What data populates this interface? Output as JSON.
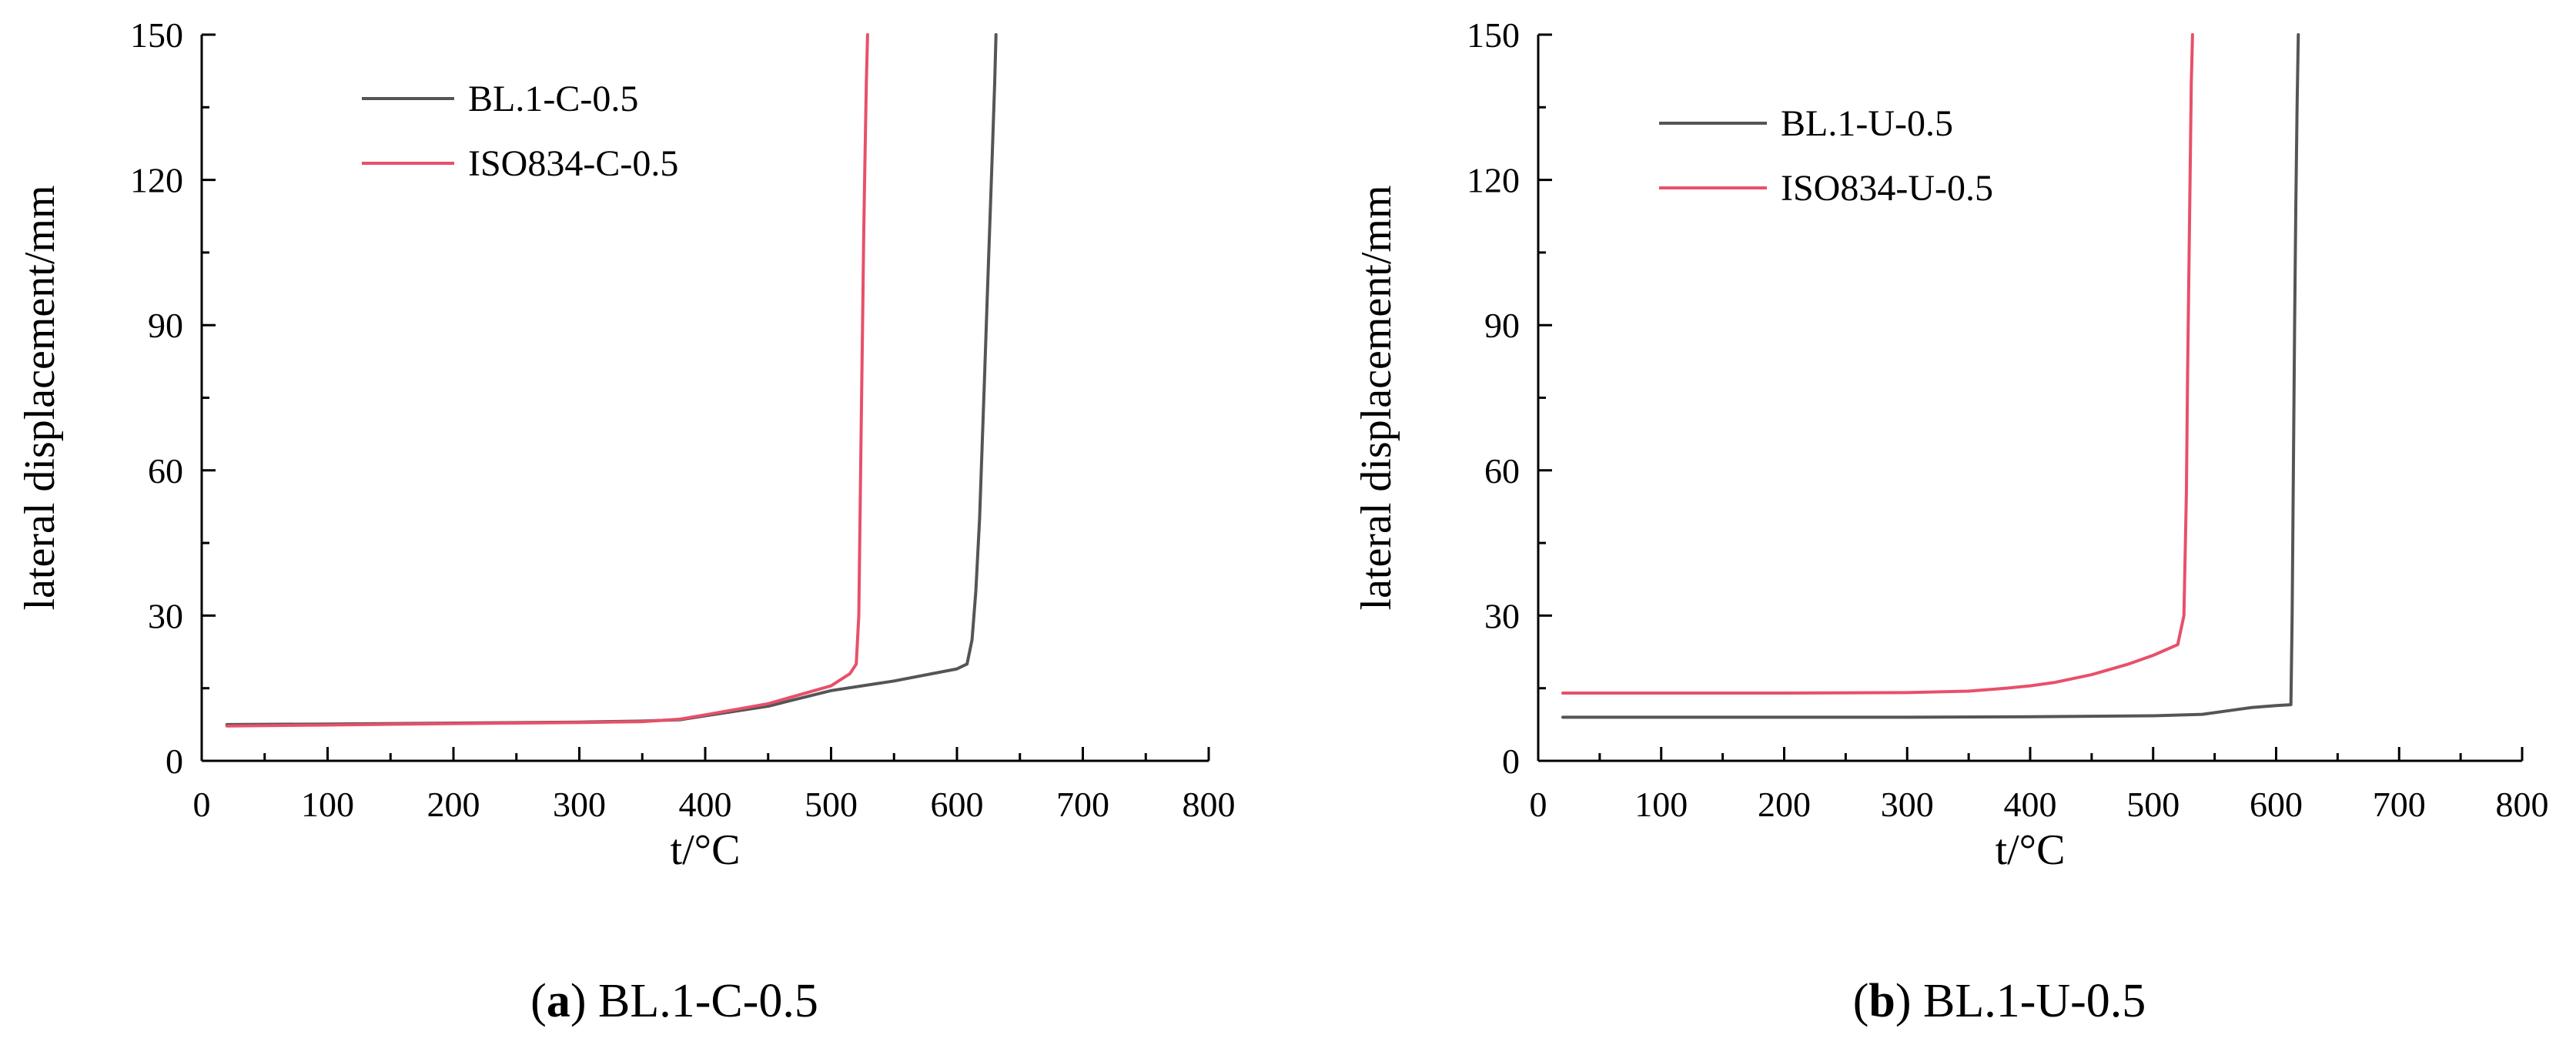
{
  "chart_data": [
    {
      "type": "line",
      "caption_letter": "a",
      "caption_rest": "BL.1-C-0.5",
      "xlabel": "t/°C",
      "ylabel": "lateral displacement/mm",
      "xlim": [
        0,
        800
      ],
      "ylim": [
        0,
        150
      ],
      "xticks": [
        0,
        100,
        200,
        300,
        400,
        500,
        600,
        700,
        800
      ],
      "yticks": [
        0,
        30,
        60,
        90,
        120,
        150
      ],
      "grid": false,
      "legend": "top-left",
      "series": [
        {
          "name": "BL.1-C-0.5",
          "color": "#555555",
          "x": [
            20,
            100,
            200,
            300,
            350,
            380,
            400,
            450,
            500,
            550,
            600,
            608,
            612,
            615,
            618,
            620,
            622,
            624,
            626,
            628,
            630,
            631
          ],
          "y": [
            7.5,
            7.6,
            7.8,
            8,
            8.2,
            8.5,
            9.3,
            11.3,
            14.5,
            16.5,
            19,
            20,
            25,
            35,
            50,
            65,
            80,
            95,
            110,
            125,
            140,
            150
          ]
        },
        {
          "name": "ISO834-C-0.5",
          "color": "#e8506a",
          "x": [
            20,
            100,
            200,
            300,
            350,
            380,
            400,
            450,
            500,
            515,
            520,
            522,
            523,
            524,
            525,
            526,
            527,
            528,
            529
          ],
          "y": [
            7.2,
            7.4,
            7.7,
            7.9,
            8.1,
            8.6,
            9.5,
            11.8,
            15.5,
            18,
            20,
            30,
            50,
            70,
            90,
            110,
            125,
            140,
            150
          ]
        }
      ]
    },
    {
      "type": "line",
      "caption_letter": "b",
      "caption_rest": "BL.1-U-0.5",
      "xlabel": "t/°C",
      "ylabel": "lateral displacement/mm",
      "xlim": [
        0,
        800
      ],
      "ylim": [
        0,
        150
      ],
      "xticks": [
        0,
        100,
        200,
        300,
        400,
        500,
        600,
        700,
        800
      ],
      "yticks": [
        0,
        30,
        60,
        90,
        120,
        150
      ],
      "grid": false,
      "legend": "top-left",
      "series": [
        {
          "name": "BL.1-U-0.5",
          "color": "#555555",
          "x": [
            20,
            100,
            200,
            300,
            400,
            500,
            540,
            560,
            580,
            600,
            612,
            613,
            614,
            615,
            616,
            617,
            618
          ],
          "y": [
            9,
            9,
            9,
            9,
            9.1,
            9.3,
            9.6,
            10.3,
            11,
            11.4,
            11.6,
            30,
            60,
            90,
            115,
            135,
            150
          ]
        },
        {
          "name": "ISO834-U-0.5",
          "color": "#e8506a",
          "x": [
            20,
            100,
            200,
            300,
            350,
            380,
            400,
            420,
            450,
            480,
            500,
            520,
            525,
            527,
            528,
            529,
            530,
            531,
            532
          ],
          "y": [
            14,
            14,
            14,
            14.1,
            14.4,
            15,
            15.5,
            16.2,
            17.8,
            20,
            21.8,
            24,
            30,
            55,
            80,
            100,
            120,
            140,
            150
          ]
        }
      ]
    }
  ]
}
